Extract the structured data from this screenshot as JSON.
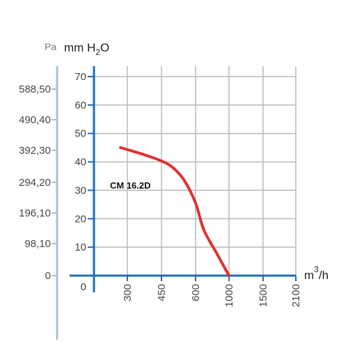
{
  "chart_data": {
    "type": "line",
    "title": "",
    "units": {
      "pa": "Pa",
      "mm_prefix": "mm H",
      "mm_sub": "2",
      "mm_suffix": "O",
      "x_base": "m",
      "x_sup": "3",
      "x_suffix": "/h"
    },
    "y_ticks": [
      "0",
      "10",
      "20",
      "30",
      "40",
      "50",
      "60",
      "70"
    ],
    "pa_ticks": [
      "0",
      "98,10",
      "196,10",
      "294,20",
      "392,30",
      "490,40",
      "588,50"
    ],
    "x_ticks": [
      "300",
      "450",
      "600",
      "1000",
      "1500",
      "2100"
    ],
    "ylim": [
      0,
      70
    ],
    "grid": true,
    "series": [
      {
        "name": "CM 16.2D",
        "color": "#e03030",
        "points": [
          {
            "x": 270,
            "y": 45
          },
          {
            "x": 300,
            "y": 44.3
          },
          {
            "x": 375,
            "y": 42.5
          },
          {
            "x": 450,
            "y": 40.3
          },
          {
            "x": 500,
            "y": 38
          },
          {
            "x": 550,
            "y": 33.5
          },
          {
            "x": 600,
            "y": 25.5
          },
          {
            "x": 700,
            "y": 16
          },
          {
            "x": 850,
            "y": 8
          },
          {
            "x": 1000,
            "y": 0
          }
        ]
      }
    ]
  }
}
